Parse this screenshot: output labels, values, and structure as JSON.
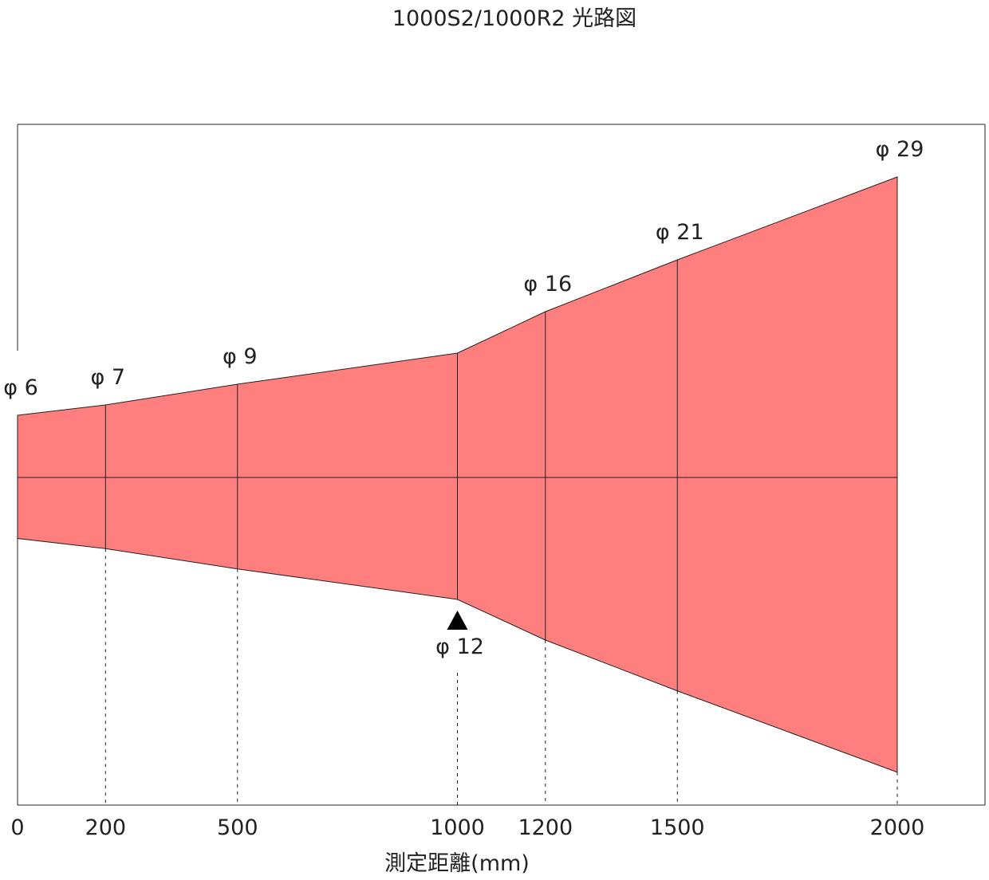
{
  "chart_data": {
    "type": "area",
    "title": "1000S2/1000R2 光路図",
    "xlabel": "測定距離(mm)",
    "ylabel": "",
    "unit": "mm",
    "xlim": [
      0,
      2000
    ],
    "x_ticks": [
      "0",
      "200",
      "500",
      "1000",
      "1200",
      "1500",
      "2000"
    ],
    "diameter_symbol": "φ",
    "points": [
      {
        "x": 0,
        "diameter": 6,
        "label": "6"
      },
      {
        "x": 200,
        "diameter": 7,
        "label": "7"
      },
      {
        "x": 500,
        "diameter": 9,
        "label": "9"
      },
      {
        "x": 1000,
        "diameter": 12,
        "label": "12"
      },
      {
        "x": 1200,
        "diameter": 16,
        "label": "16"
      },
      {
        "x": 1500,
        "diameter": 21,
        "label": "21"
      },
      {
        "x": 2000,
        "diameter": 29,
        "label": "29"
      }
    ],
    "focus_x": 1000,
    "beam_color": "#ff7f7f",
    "line_color": "#222222"
  }
}
